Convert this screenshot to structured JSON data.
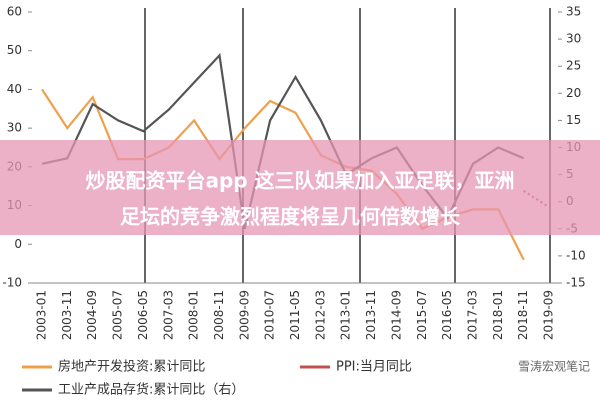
{
  "chart_data": {
    "type": "line",
    "categories": [
      "2003-01",
      "2003-11",
      "2004-09",
      "2005-07",
      "2006-05",
      "2007-03",
      "2008-01",
      "2008-11",
      "2009-09",
      "2010-07",
      "2011-05",
      "2012-03",
      "2013-01",
      "2013-11",
      "2014-09",
      "2015-07",
      "2016-05",
      "2017-03",
      "2018-01",
      "2018-11",
      "2019-09"
    ],
    "series": [
      {
        "name": "房地产开发投资:累计同比",
        "color": "#f0a04b",
        "axis": "y",
        "values": [
          40,
          30,
          38,
          22,
          22,
          25,
          32,
          22,
          30,
          37,
          34,
          23,
          20,
          19,
          13,
          4,
          7,
          9,
          9,
          -4,
          null
        ]
      },
      {
        "name": "PPI:当月同比",
        "color": "#c0504d",
        "axis": "y2",
        "values": [
          null,
          null,
          null,
          null,
          null,
          null,
          null,
          null,
          null,
          null,
          null,
          null,
          null,
          null,
          null,
          null,
          null,
          null,
          null,
          2,
          -1
        ]
      },
      {
        "name": "工业产成品存货:累计同比（右）",
        "color": "#555555",
        "axis": "y2",
        "values": [
          7,
          8,
          18,
          15,
          13,
          17,
          22,
          27,
          -5,
          15,
          23,
          15,
          5,
          8,
          10,
          3,
          -3,
          7,
          10,
          8,
          null
        ]
      }
    ],
    "ylim": [
      -10,
      60
    ],
    "yticks": [
      -10,
      0,
      10,
      20,
      30,
      40,
      50,
      60
    ],
    "y2lim": [
      -15,
      35
    ],
    "y2ticks": [
      -15,
      -10,
      -5,
      0,
      5,
      10,
      15,
      20,
      25,
      30,
      35
    ]
  },
  "banner_text": [
    "炒股配资平台app 这三队如果加入亚足联，亚洲",
    "足坛的竞争激烈程度将呈几何倍数增长"
  ],
  "watermark": "雪涛宏观笔记"
}
